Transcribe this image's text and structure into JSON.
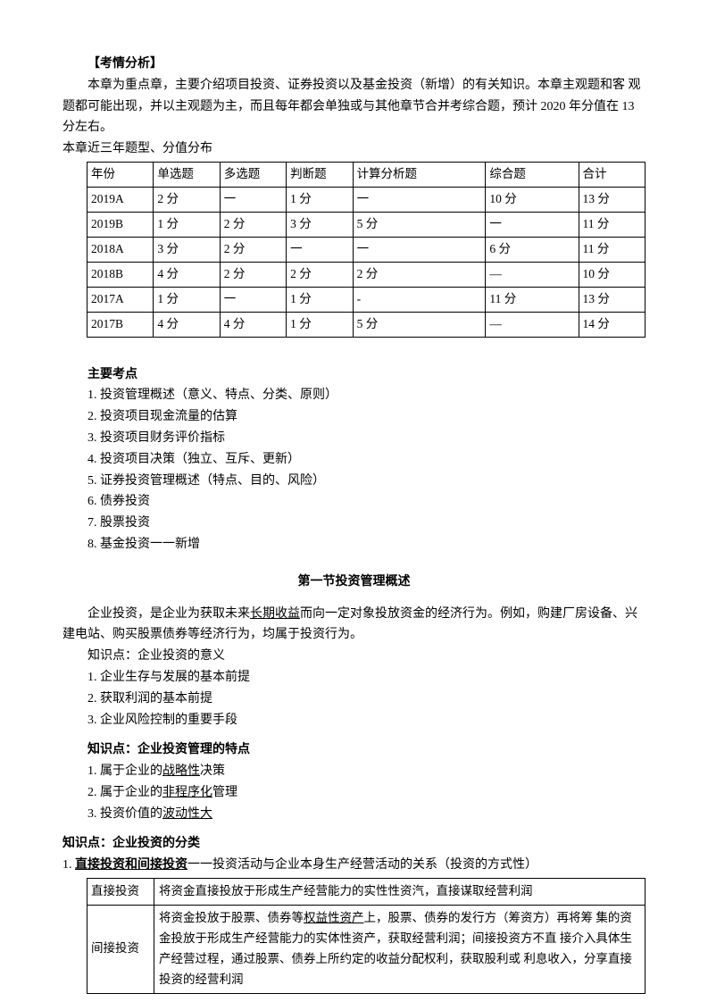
{
  "header": {
    "title": "【考情分析】",
    "intro": "本章为重点章，主要介绍项目投资、证券投资以及基金投资（新增）的有关知识。本章主观题和客 观题都可能出现，并以主观题为主，而且每年都会单独或与其他章节合并考综合题，预计 2020 年分值在 13 分左右。",
    "table_caption": "本章近三年题型、分值分布"
  },
  "score_table": {
    "headers": [
      "年份",
      "单选题",
      "多选题",
      "判断题",
      "计算分析题",
      "综合题",
      "合计"
    ],
    "rows": [
      [
        "2019A",
        "2 分",
        "一",
        "1 分",
        "一",
        "10 分",
        "13 分"
      ],
      [
        "2019B",
        "1 分",
        "2 分",
        "3 分",
        "5 分",
        "一",
        "11 分"
      ],
      [
        "2018A",
        "3 分",
        "2 分",
        "一",
        "一",
        "6 分",
        "11 分"
      ],
      [
        "2018B",
        "4 分",
        "2 分",
        "2 分",
        "2 分",
        "—",
        "10 分"
      ],
      [
        "2017A",
        "1 分",
        "一",
        "1 分",
        "-",
        "11 分",
        "13 分"
      ],
      [
        "2017B",
        "4 分",
        "4 分",
        "1 分",
        "5 分",
        "—",
        "14 分"
      ]
    ]
  },
  "key_points": {
    "title": "主要考点",
    "items": [
      "1.  投资管理概述（意义、特点、分类、原则）",
      "2.  投资项目现金流量的估算",
      "3.  投资项目财务评价指标",
      "4.  投资项目决策（独立、互斥、更新）",
      "5.  证券投资管理概述（特点、目的、风险）",
      "6.  债券投资",
      "7.  股票投资",
      "8.  基金投资一一新增"
    ]
  },
  "section1": {
    "title": "第一节投资管理概述",
    "intro_pre": "企业投资，是企业为获取未来",
    "intro_underline": "长期收益",
    "intro_post": "而向一定对象投放资金的经济行为。例如，购建厂房设备、兴建电站、购买股票债券等经济行为，均属于投资行为。",
    "kp1_title": "知识点：企业投资的意义",
    "kp1_items": [
      "1.  企业生存与发展的基本前提",
      "2.  获取利润的基本前提",
      "3.  企业风险控制的重要手段"
    ],
    "kp2_title": "知识点：企业投资管理的特点",
    "kp2_item1_pre": "1.  属于企业的",
    "kp2_item1_u": "战略性",
    "kp2_item1_post": "决策",
    "kp2_item2_pre": "2.  属于企业的",
    "kp2_item2_u": "非程序化",
    "kp2_item2_post": "管理",
    "kp2_item3_pre": "3.  投资价值的",
    "kp2_item3_u": "波动性大"
  },
  "section2": {
    "title": "知识点：企业投资的分类",
    "sub_pre": "1. ",
    "sub_bold": "直接投资和间接投资",
    "sub_post": "一一投资活动与企业本身生产经营活动的关系（投资的方式性）",
    "row1_label": "直接投资",
    "row1_text": "将资金直接投放于形成生产经营能力的实性性资汽，直接谋取经营利润",
    "row2_label": "间接投资",
    "row2_pre": "将资金投放于股票、债券等",
    "row2_u": "权益性资产",
    "row2_post": "上，股票、债券的发行方（筹资方）再将筹 集的资金投放于形成生产经营能力的实体性资产，获取经营利润；间接投资方不直 接介入具体生产经营过程，通过股票、债券上所约定的收益分配权利，获取股利或 利息收入，分享直接投资的经营利润"
  }
}
